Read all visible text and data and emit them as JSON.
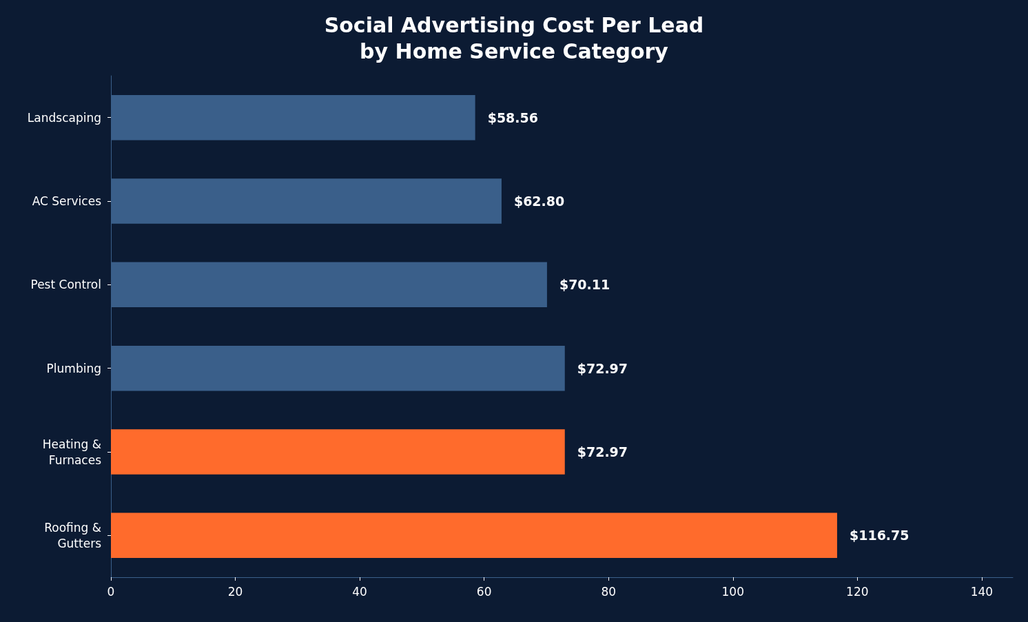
{
  "chart_data": {
    "type": "bar",
    "orientation": "horizontal",
    "title": "Social Advertising Cost Per Lead\nby Home Service Category",
    "categories": [
      "Landscaping",
      "AC Services",
      "Pest Control",
      "Plumbing",
      "Heating &\nFurnaces",
      "Roofing &\nGutters"
    ],
    "values": [
      58.56,
      62.8,
      70.11,
      72.97,
      72.97,
      116.75
    ],
    "colors": [
      "#3a5f8a",
      "#3a5f8a",
      "#3a5f8a",
      "#3a5f8a",
      "#ff6b2c",
      "#ff6b2c"
    ],
    "value_labels": [
      "$58.56",
      "$62.80",
      "$70.11",
      "$72.97",
      "$72.97",
      "$116.75"
    ],
    "xlim": [
      0,
      145
    ],
    "xticks": [
      0,
      20,
      40,
      60,
      80,
      100,
      120,
      140
    ],
    "grid": false
  }
}
